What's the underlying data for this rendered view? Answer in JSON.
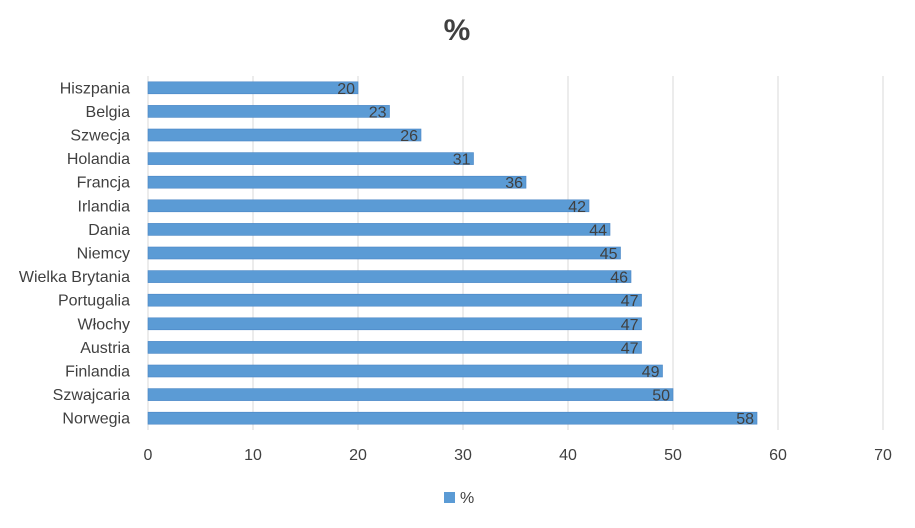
{
  "chart_data": {
    "type": "bar",
    "orientation": "horizontal",
    "title": "%",
    "categories": [
      "Hiszpania",
      "Belgia",
      "Szwecja",
      "Holandia",
      "Francja",
      "Irlandia",
      "Dania",
      "Niemcy",
      "Wielka Brytania",
      "Portugalia",
      "Włochy",
      "Austria",
      "Finlandia",
      "Szwajcaria",
      "Norwegia"
    ],
    "series": [
      {
        "name": "%",
        "values": [
          20,
          23,
          26,
          31,
          36,
          42,
          44,
          45,
          46,
          47,
          47,
          47,
          49,
          50,
          58
        ]
      }
    ],
    "xlim": [
      0,
      70
    ],
    "xticks": [
      0,
      10,
      20,
      30,
      40,
      50,
      60,
      70
    ],
    "xlabel": "",
    "ylabel": "",
    "grid": "vertical",
    "legend": "bottom",
    "data_labels": true,
    "colors": {
      "bar": "#5b9bd5",
      "bar_edge": "#4a86c5",
      "grid": "#d9d9d9",
      "text": "#404040"
    }
  }
}
